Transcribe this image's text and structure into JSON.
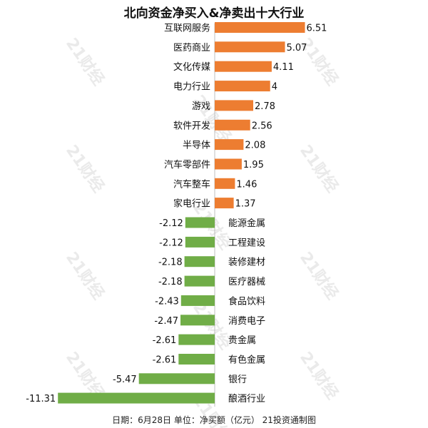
{
  "chart_data": {
    "type": "bar",
    "orientation": "horizontal",
    "title": "北向资金净买入&净卖出十大行业",
    "categories": [
      "互联网服务",
      "医药商业",
      "文化传媒",
      "电力行业",
      "游戏",
      "软件开发",
      "半导体",
      "汽车零部件",
      "汽车整车",
      "家电行业",
      "能源金属",
      "工程建设",
      "装修建材",
      "医疗器械",
      "食品饮料",
      "消费电子",
      "贵金属",
      "有色金属",
      "银行",
      "酿酒行业"
    ],
    "values": [
      6.51,
      5.07,
      4.11,
      4,
      2.78,
      2.56,
      2.08,
      1.95,
      1.46,
      1.37,
      -2.12,
      -2.12,
      -2.18,
      -2.18,
      -2.43,
      -2.47,
      -2.61,
      -2.61,
      -5.47,
      -11.31
    ],
    "value_labels": [
      "6.51",
      "5.07",
      "4.11",
      "4",
      "2.78",
      "2.56",
      "2.08",
      "1.95",
      "1.46",
      "1.37",
      "-2.12",
      "-2.12",
      "-2.18",
      "-2.18",
      "-2.43",
      "-2.47",
      "-2.61",
      "-2.61",
      "-5.47",
      "-11.31"
    ],
    "colors": {
      "positive": "#ED7D31",
      "negative": "#70AD47",
      "axis": "#bfbfbf"
    },
    "xlim": [
      -11.31,
      6.51
    ],
    "grid": false,
    "legend": "none",
    "footer": "日期：6月28日 单位：净买额（亿元） 21投资通制图",
    "watermark": "21财经"
  }
}
